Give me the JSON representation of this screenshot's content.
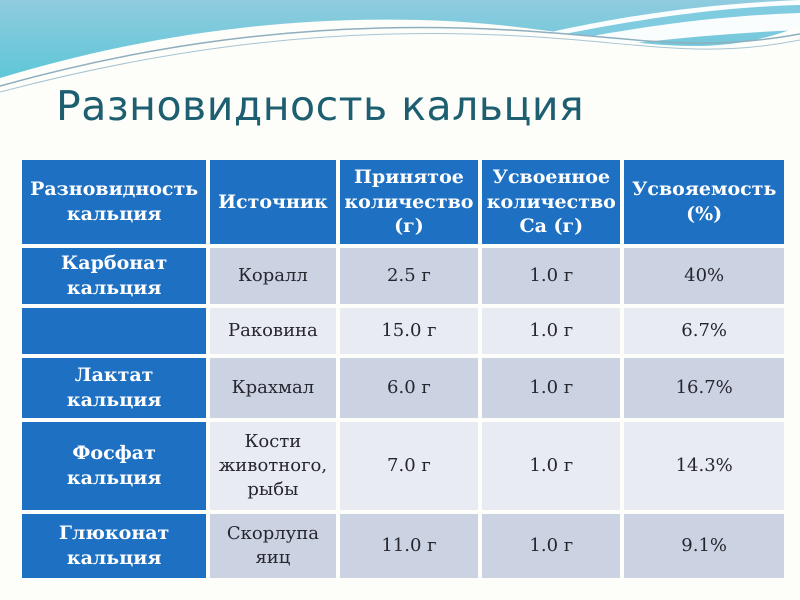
{
  "slide": {
    "title": "Разновидность кальция",
    "colors": {
      "title_text": "#1D5F70",
      "header_bg": "#1E70C2",
      "row_header_bg": "#1E70C2",
      "band_dark": "#CBD3E3",
      "band_light": "#E9EBF3",
      "body_text": "#26262E",
      "header_text": "#FFFFFF",
      "sky_top": "#90CBDF",
      "sky_bottom": "#53C6D6"
    },
    "icons": {
      "wave_decoration": "wave-banner"
    }
  },
  "table": {
    "columns": [
      "Разновидность кальция",
      "Источник",
      "Принятое количество (г)",
      "Усвоенное количество Ca (г)",
      "Усвояемость (%)"
    ],
    "rows": [
      {
        "type": "Карбонат кальция",
        "source": "Коралл",
        "taken": "2.5 г",
        "absorbed": "1.0 г",
        "absorbability": "40%"
      },
      {
        "type": "",
        "source": "Раковина",
        "taken": "15.0 г",
        "absorbed": "1.0 г",
        "absorbability": "6.7%"
      },
      {
        "type": "Лактат кальция",
        "source": "Крахмал",
        "taken": "6.0 г",
        "absorbed": "1.0 г",
        "absorbability": "16.7%"
      },
      {
        "type": "Фосфат кальция",
        "source": "Кости животного, рыбы",
        "taken": "7.0 г",
        "absorbed": "1.0 г",
        "absorbability": "14.3%"
      },
      {
        "type": "Глюконат кальция",
        "source": "Скорлупа яиц",
        "taken": "11.0 г",
        "absorbed": "1.0 г",
        "absorbability": "9.1%"
      }
    ]
  }
}
